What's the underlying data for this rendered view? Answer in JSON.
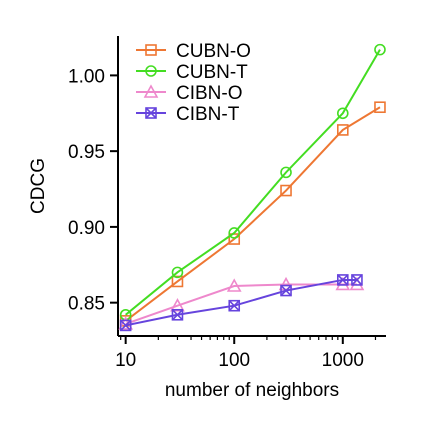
{
  "chart_data": {
    "type": "line",
    "xlabel": "number of neighbors",
    "ylabel": "CDCG",
    "xscale": "log",
    "xlim": [
      8.5,
      2500
    ],
    "ylim": [
      0.828,
      1.026
    ],
    "xticks": [
      10,
      100,
      1000
    ],
    "xtick_labels": [
      "10",
      "100",
      "1000"
    ],
    "yticks": [
      0.85,
      0.9,
      0.95,
      1.0
    ],
    "ytick_labels": [
      "0.85",
      "0.90",
      "0.95",
      "1.00"
    ],
    "grid": false,
    "legend_position": "top-left",
    "series": [
      {
        "name": "CUBN-O",
        "color": "#ee7733",
        "marker": "square",
        "x": [
          10,
          30,
          100,
          300,
          1000,
          2200
        ],
        "y": [
          0.838,
          0.864,
          0.892,
          0.924,
          0.964,
          0.979
        ]
      },
      {
        "name": "CUBN-T",
        "color": "#44dd22",
        "marker": "circle",
        "x": [
          10,
          30,
          100,
          300,
          1000,
          2200
        ],
        "y": [
          0.842,
          0.87,
          0.896,
          0.936,
          0.975,
          1.017
        ]
      },
      {
        "name": "CIBN-O",
        "color": "#ee88cc",
        "marker": "triangle",
        "x": [
          10,
          30,
          100,
          300,
          1000,
          1350
        ],
        "y": [
          0.836,
          0.848,
          0.861,
          0.862,
          0.862,
          0.862
        ]
      },
      {
        "name": "CIBN-T",
        "color": "#6644dd",
        "marker": "boxed-x",
        "x": [
          10,
          30,
          100,
          300,
          1000,
          1350
        ],
        "y": [
          0.835,
          0.842,
          0.848,
          0.858,
          0.865,
          0.865
        ]
      }
    ]
  }
}
